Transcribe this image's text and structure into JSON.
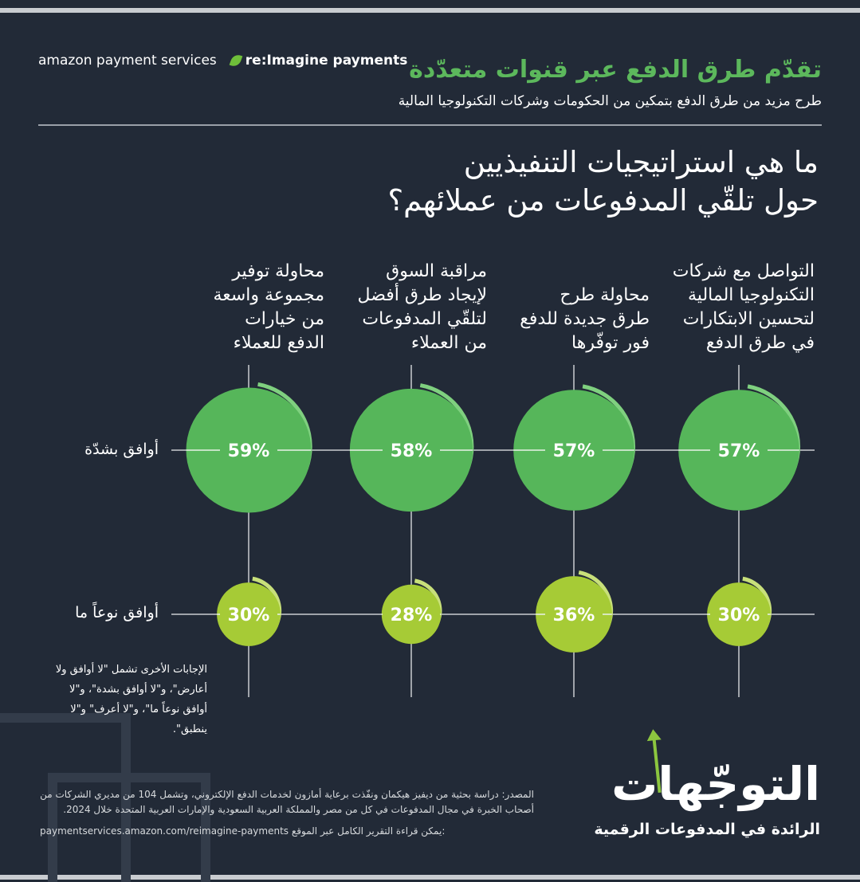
{
  "header": {
    "logo_amazon": "amazon payment services",
    "logo_reimagine": "re:Imagine payments",
    "title": "تقدّم طرق الدفع عبر قنوات متعدّدة",
    "subtitle": "طرح مزيد من طرق الدفع بتمكين من الحكومات وشركات التكنولوجيا المالية"
  },
  "question": [
    "ما هي استراتيجيات التنفيذيين",
    "حول تلقّي المدفوعات من عملائهم؟"
  ],
  "colors": {
    "background": "#222a37",
    "strong": "#56b65a",
    "some": "#a6cb36",
    "title": "#5cb85c"
  },
  "chart_data": {
    "type": "bubble",
    "title": "ما هي استراتيجيات التنفيذيين حول تلقّي المدفوعات من عملائهم؟",
    "categories": [
      "التواصل مع شركات التكنولوجيا المالية لتحسين الابتكارات في طرق الدفع",
      "محاولة طرح طرق جديدة للدفع فور توفّرها",
      "مراقبة السوق لإيجاد طرق أفضل لتلقّي المدفوعات من العملاء",
      "محاولة توفير مجموعة واسعة من خيارات الدفع للعملاء"
    ],
    "category_lines": [
      [
        "التواصل مع شركات",
        "التكنولوجيا المالية",
        "لتحسين الابتكارات",
        "في طرق الدفع"
      ],
      [
        "محاولة طرح",
        "طرق جديدة للدفع",
        "فور توفّرها"
      ],
      [
        "مراقبة السوق",
        "لإيجاد طرق أفضل",
        "لتلقّي المدفوعات",
        "من العملاء"
      ],
      [
        "محاولة توفير",
        "مجموعة واسعة",
        "من خيارات",
        "الدفع للعملاء"
      ]
    ],
    "series": [
      {
        "name": "أوافق بشدّة",
        "values": [
          57,
          57,
          58,
          59
        ],
        "labels": [
          "57%",
          "57%",
          "58%",
          "59%"
        ]
      },
      {
        "name": "أوافق نوعاً ما",
        "values": [
          30,
          36,
          28,
          30
        ],
        "labels": [
          "30%",
          "36%",
          "28%",
          "30%"
        ]
      }
    ],
    "unit": "%"
  },
  "note": "الإجابات الأخرى تشمل \"لا أوافق ولا أعارض\"، و\"لا أوافق بشدة\"، و\"لا أوافق نوعاً ما\"، و\"لا أعرف\" و\"لا ينطبق\".",
  "source": "المصدر: دراسة بحثية من ديفيز هيكمان ونفّذت برعاية أمازون لخدمات الدفع الإلكتروني، وتشمل 104 من مديري الشركات من أصحاب الخبرة في مجال المدفوعات في كل من مصر والمملكة العربية السعودية والإمارات العربية المتحدة خلال 2024.",
  "link_label": "يمكن قراءة التقرير الكامل عبر الموقع:",
  "link": "paymentservices.amazon.com/reimagine-payments",
  "brand": {
    "title": "التوجّهات",
    "subtitle": "الرائدة في المدفوعات الرقمية"
  }
}
